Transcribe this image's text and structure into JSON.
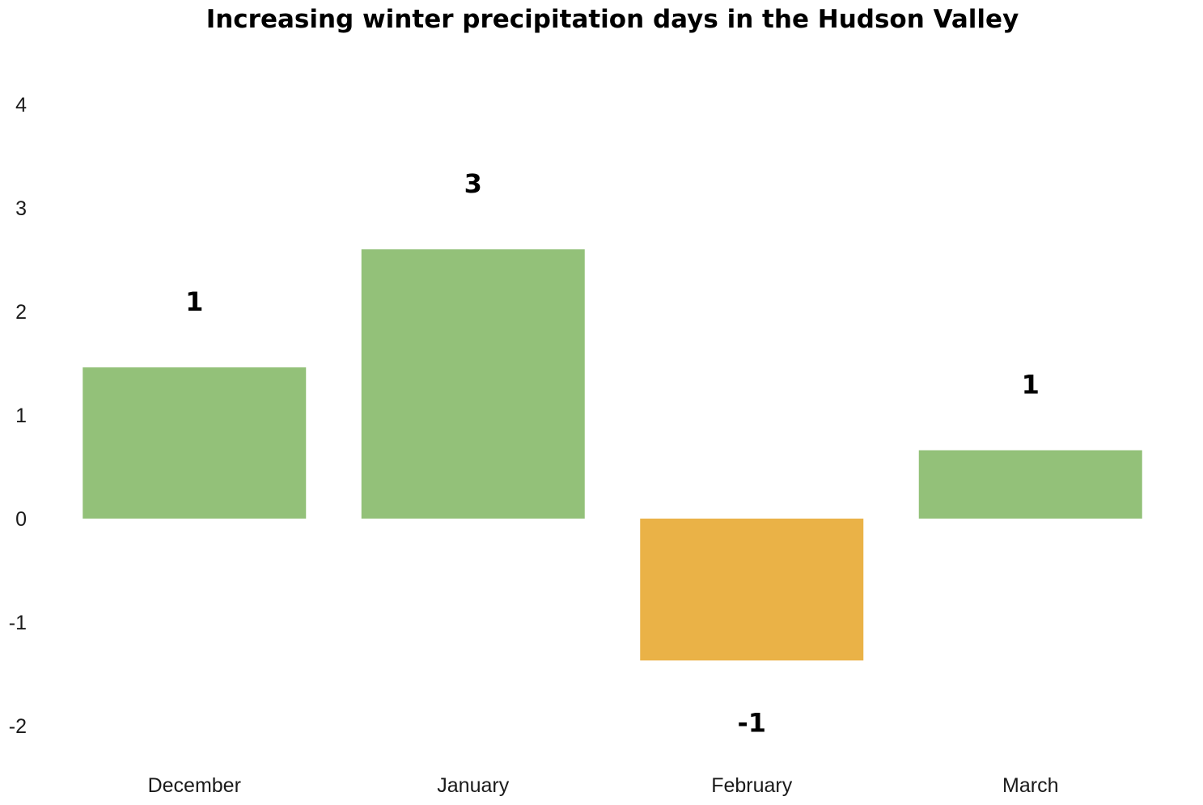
{
  "chart_data": {
    "type": "bar",
    "title": "Increasing winter precipitation days in the Hudson Valley",
    "xlabel": "",
    "ylabel": "",
    "categories": [
      "December",
      "January",
      "February",
      "March"
    ],
    "values": [
      1.46,
      2.6,
      -1.37,
      0.66
    ],
    "data_labels": [
      "1",
      "3",
      "-1",
      "1"
    ],
    "ylim": [
      -2,
      4
    ],
    "yticks": [
      4,
      3,
      2,
      1,
      0,
      -1,
      -2
    ],
    "ytick_labels": [
      "4",
      "3",
      "2",
      "1",
      "0",
      "-1",
      "-2"
    ],
    "grid": false,
    "legend": "none",
    "colors": {
      "positive": "#93c179",
      "negative": "#eab247"
    }
  }
}
